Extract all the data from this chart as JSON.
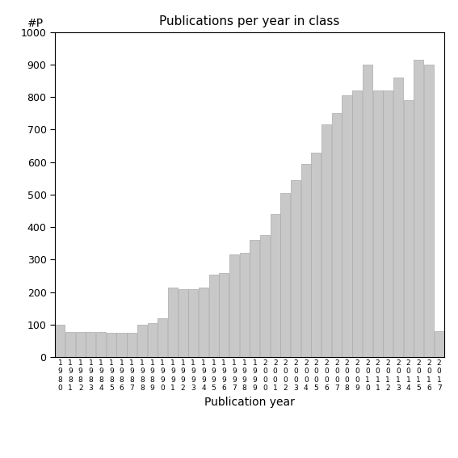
{
  "title": "Publications per year in class",
  "xlabel": "Publication year",
  "ylabel": "#P",
  "ylim": [
    0,
    1000
  ],
  "yticks": [
    0,
    100,
    200,
    300,
    400,
    500,
    600,
    700,
    800,
    900,
    1000
  ],
  "bar_color": "#c8c8c8",
  "bar_edgecolor": "#aaaaaa",
  "years": [
    "1980",
    "1981",
    "1982",
    "1983",
    "1984",
    "1985",
    "1986",
    "1987",
    "1988",
    "1989",
    "1990",
    "1991",
    "1992",
    "1993",
    "1994",
    "1995",
    "1996",
    "1997",
    "1998",
    "1999",
    "2000",
    "2001",
    "2002",
    "2003",
    "2004",
    "2005",
    "2006",
    "2007",
    "2008",
    "2009",
    "2010",
    "2011",
    "2012",
    "2013",
    "2014",
    "2015",
    "2016",
    "2017"
  ],
  "values": [
    100,
    78,
    78,
    78,
    78,
    75,
    75,
    75,
    100,
    105,
    120,
    215,
    210,
    210,
    215,
    255,
    260,
    315,
    320,
    360,
    375,
    440,
    505,
    545,
    595,
    630,
    715,
    750,
    805,
    820,
    900,
    820,
    820,
    860,
    790,
    915,
    900,
    80
  ],
  "background_color": "#ffffff"
}
